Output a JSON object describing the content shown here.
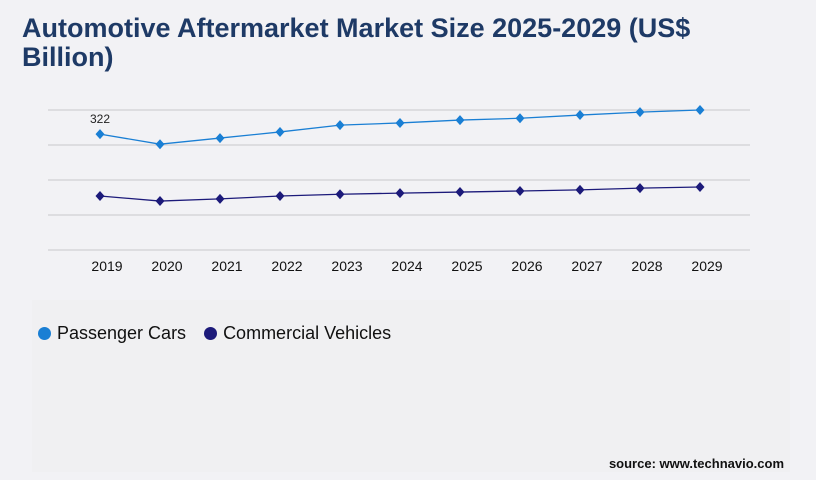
{
  "chart_data": {
    "type": "line",
    "title": "Automotive Aftermarket Market Size 2025-2029 (US$ Billion)",
    "xlabel": "",
    "ylabel": "",
    "categories": [
      "2019",
      "2020",
      "2021",
      "2022",
      "2023",
      "2024",
      "2025",
      "2026",
      "2027",
      "2028",
      "2029"
    ],
    "ylim": [
      0,
      389
    ],
    "grid": true,
    "legend_position": "bottom-left",
    "series": [
      {
        "name": "Passenger Cars",
        "color": "#1a7fd4",
        "values": [
          322,
          294,
          311,
          328,
          347,
          353,
          361,
          366,
          375,
          383,
          389
        ]
      },
      {
        "name": "Commercial Vehicles",
        "color": "#1c1a7a",
        "values": [
          150,
          136,
          142,
          150,
          155,
          158,
          161,
          164,
          167,
          172,
          175
        ]
      }
    ],
    "annotations": [
      {
        "category": "2019",
        "series": "Passenger Cars",
        "text": "322"
      }
    ]
  },
  "source": "source: www.technavio.com"
}
